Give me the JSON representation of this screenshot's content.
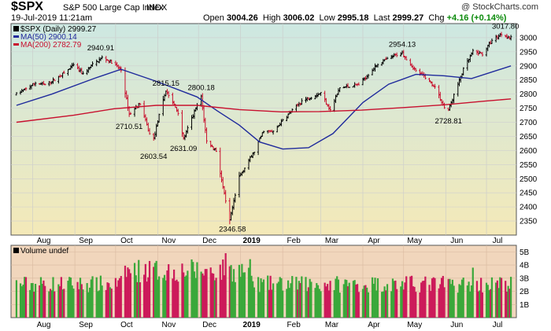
{
  "header": {
    "symbol": "$SPX",
    "company": "S&P 500 Large Cap Index",
    "exchange": "INDX",
    "datetime": "19-Jul-2019 11:21am",
    "open_label": "Open",
    "open": "3004.26",
    "high_label": "High",
    "high": "3006.02",
    "low_label": "Low",
    "low": "2995.18",
    "last_label": "Last",
    "last": "2999.27",
    "chg_label": "Chg",
    "chg": "+4.16 (+0.14%)",
    "credit": "@ StockCharts.com"
  },
  "legend": {
    "series": "$SPX (Daily) 2999.27",
    "ma50": "MA(50) 2900.14",
    "ma200": "MA(200) 2782.79",
    "volume": "Volume undef"
  },
  "colors": {
    "up": "#000000",
    "down": "#c8102e",
    "ma50": "#1f2a9c",
    "ma200": "#c8102e",
    "vol_up": "#3aa83a",
    "vol_down": "#cc1a5a",
    "price_bg_top": "#cde8e2",
    "price_bg_bottom": "#f4e9b8",
    "vol_bg": "#f1d6bc"
  },
  "chart_data": {
    "type": "line",
    "title": "$SPX (Daily)",
    "x_tick_labels": [
      "Aug",
      "Sep",
      "Oct",
      "Nov",
      "Dec",
      "2019",
      "Feb",
      "Mar",
      "Apr",
      "May",
      "Jun",
      "Jul"
    ],
    "price_axis": {
      "ylim": [
        2300,
        3050
      ],
      "ticks": [
        2350,
        2400,
        2450,
        2500,
        2550,
        2600,
        2650,
        2700,
        2750,
        2800,
        2850,
        2900,
        2950,
        3000
      ]
    },
    "volume_axis": {
      "ylim": [
        0,
        5.5
      ],
      "ticks": [
        "1B",
        "2B",
        "3B",
        "4B",
        "5B"
      ]
    },
    "annotations": [
      {
        "label": "2940.91",
        "value": 2940.91,
        "date": "2018-09-20"
      },
      {
        "label": "2815.15",
        "value": 2815.15,
        "date": "2018-11-07"
      },
      {
        "label": "2800.18",
        "value": 2800.18,
        "date": "2018-12-03"
      },
      {
        "label": "2710.51",
        "value": 2710.51,
        "date": "2018-10-11"
      },
      {
        "label": "2603.54",
        "value": 2603.54,
        "date": "2018-10-29"
      },
      {
        "label": "2631.09",
        "value": 2631.09,
        "date": "2018-11-20"
      },
      {
        "label": "2346.58",
        "value": 2346.58,
        "date": "2018-12-26"
      },
      {
        "label": "2954.13",
        "value": 2954.13,
        "date": "2019-04-30"
      },
      {
        "label": "2728.81",
        "value": 2728.81,
        "date": "2019-06-03"
      },
      {
        "label": "3017.80",
        "value": 3017.8,
        "date": "2019-07-15"
      }
    ],
    "series": [
      {
        "name": "$SPX (Daily)",
        "points": [
          [
            "2018-07-20",
            2800
          ],
          [
            "2018-07-27",
            2818
          ],
          [
            "2018-08-03",
            2840
          ],
          [
            "2018-08-10",
            2833
          ],
          [
            "2018-08-17",
            2850
          ],
          [
            "2018-08-24",
            2874
          ],
          [
            "2018-08-31",
            2902
          ],
          [
            "2018-09-07",
            2871
          ],
          [
            "2018-09-14",
            2904
          ],
          [
            "2018-09-21",
            2929
          ],
          [
            "2018-09-28",
            2914
          ],
          [
            "2018-10-05",
            2885
          ],
          [
            "2018-10-11",
            2728
          ],
          [
            "2018-10-19",
            2767
          ],
          [
            "2018-10-26",
            2658
          ],
          [
            "2018-10-29",
            2641
          ],
          [
            "2018-11-02",
            2723
          ],
          [
            "2018-11-07",
            2813
          ],
          [
            "2018-11-16",
            2736
          ],
          [
            "2018-11-20",
            2641
          ],
          [
            "2018-11-30",
            2760
          ],
          [
            "2018-12-03",
            2790
          ],
          [
            "2018-12-07",
            2633
          ],
          [
            "2018-12-14",
            2599
          ],
          [
            "2018-12-21",
            2417
          ],
          [
            "2018-12-24",
            2351
          ],
          [
            "2018-12-31",
            2507
          ],
          [
            "2019-01-11",
            2596
          ],
          [
            "2019-01-18",
            2671
          ],
          [
            "2019-01-25",
            2665
          ],
          [
            "2019-02-01",
            2707
          ],
          [
            "2019-02-15",
            2776
          ],
          [
            "2019-03-01",
            2804
          ],
          [
            "2019-03-08",
            2743
          ],
          [
            "2019-03-15",
            2822
          ],
          [
            "2019-03-29",
            2834
          ],
          [
            "2019-04-12",
            2907
          ],
          [
            "2019-04-26",
            2940
          ],
          [
            "2019-04-30",
            2946
          ],
          [
            "2019-05-10",
            2881
          ],
          [
            "2019-05-17",
            2860
          ],
          [
            "2019-05-24",
            2826
          ],
          [
            "2019-05-31",
            2752
          ],
          [
            "2019-06-03",
            2744
          ],
          [
            "2019-06-14",
            2887
          ],
          [
            "2019-06-21",
            2950
          ],
          [
            "2019-06-28",
            2942
          ],
          [
            "2019-07-05",
            2990
          ],
          [
            "2019-07-12",
            3013
          ],
          [
            "2019-07-19",
            2999
          ]
        ]
      },
      {
        "name": "MA(50)",
        "points": [
          [
            "2018-07-20",
            2760
          ],
          [
            "2018-08-15",
            2800
          ],
          [
            "2018-09-15",
            2855
          ],
          [
            "2018-10-05",
            2888
          ],
          [
            "2018-10-31",
            2845
          ],
          [
            "2018-11-30",
            2790
          ],
          [
            "2018-12-15",
            2740
          ],
          [
            "2018-12-31",
            2690
          ],
          [
            "2019-01-15",
            2630
          ],
          [
            "2019-02-01",
            2605
          ],
          [
            "2019-02-20",
            2610
          ],
          [
            "2019-03-10",
            2660
          ],
          [
            "2019-04-01",
            2770
          ],
          [
            "2019-04-20",
            2835
          ],
          [
            "2019-05-10",
            2870
          ],
          [
            "2019-05-31",
            2865
          ],
          [
            "2019-06-20",
            2855
          ],
          [
            "2019-07-19",
            2900
          ]
        ]
      },
      {
        "name": "MA(200)",
        "points": [
          [
            "2018-07-20",
            2700
          ],
          [
            "2018-08-31",
            2725
          ],
          [
            "2018-09-30",
            2748
          ],
          [
            "2018-10-31",
            2760
          ],
          [
            "2018-11-30",
            2760
          ],
          [
            "2018-12-31",
            2745
          ],
          [
            "2019-01-31",
            2737
          ],
          [
            "2019-02-28",
            2738
          ],
          [
            "2019-03-31",
            2743
          ],
          [
            "2019-04-30",
            2752
          ],
          [
            "2019-05-31",
            2762
          ],
          [
            "2019-06-30",
            2775
          ],
          [
            "2019-07-19",
            2783
          ]
        ]
      }
    ]
  }
}
